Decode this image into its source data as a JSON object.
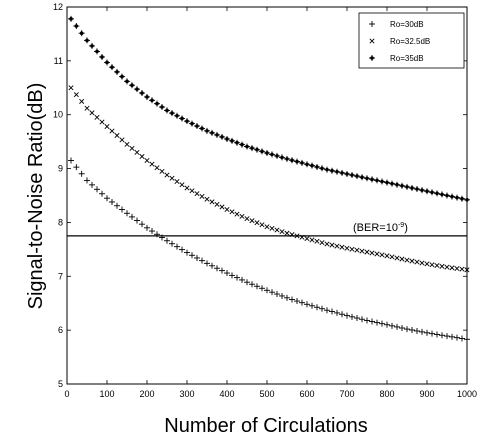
{
  "chart_data": {
    "type": "scatter",
    "title": "",
    "xlabel": "Number of Circulations",
    "ylabel": "Signal-to-Noise Ratio(dB)",
    "xlim": [
      0,
      1000
    ],
    "ylim": [
      5,
      12
    ],
    "xticks": [
      0,
      100,
      200,
      300,
      400,
      500,
      600,
      700,
      800,
      900,
      1000
    ],
    "yticks": [
      5,
      6,
      7,
      8,
      9,
      10,
      11,
      12
    ],
    "grid": false,
    "legend_position": "top-right",
    "series": [
      {
        "name": "Ro=30dB",
        "marker": "plus",
        "x": [
          10,
          50,
          100,
          150,
          200,
          250,
          300,
          350,
          400,
          450,
          500,
          550,
          600,
          650,
          700,
          750,
          800,
          850,
          900,
          950,
          1000
        ],
        "values": [
          9.15,
          8.78,
          8.45,
          8.17,
          7.9,
          7.66,
          7.44,
          7.24,
          7.06,
          6.89,
          6.74,
          6.6,
          6.48,
          6.37,
          6.27,
          6.18,
          6.1,
          6.02,
          5.95,
          5.89,
          5.83
        ]
      },
      {
        "name": "Ro=32.5dB",
        "marker": "x",
        "x": [
          10,
          50,
          100,
          150,
          200,
          250,
          300,
          350,
          400,
          450,
          500,
          550,
          600,
          650,
          700,
          750,
          800,
          850,
          900,
          950,
          1000
        ],
        "values": [
          10.5,
          10.12,
          9.78,
          9.45,
          9.15,
          8.88,
          8.64,
          8.43,
          8.24,
          8.07,
          7.92,
          7.8,
          7.7,
          7.6,
          7.52,
          7.45,
          7.38,
          7.3,
          7.23,
          7.17,
          7.12
        ]
      },
      {
        "name": "Ro=35dB",
        "marker": "dot",
        "x": [
          10,
          50,
          100,
          150,
          200,
          250,
          300,
          350,
          400,
          450,
          500,
          550,
          600,
          650,
          700,
          750,
          800,
          850,
          900,
          950,
          1000
        ],
        "values": [
          11.78,
          11.38,
          10.97,
          10.62,
          10.33,
          10.08,
          9.88,
          9.7,
          9.55,
          9.41,
          9.29,
          9.18,
          9.08,
          8.98,
          8.9,
          8.82,
          8.74,
          8.66,
          8.58,
          8.5,
          8.42
        ]
      }
    ],
    "reference_line": {
      "y": 7.75,
      "label": "(BER=10",
      "exponent": "-9",
      "suffix": ")"
    }
  }
}
